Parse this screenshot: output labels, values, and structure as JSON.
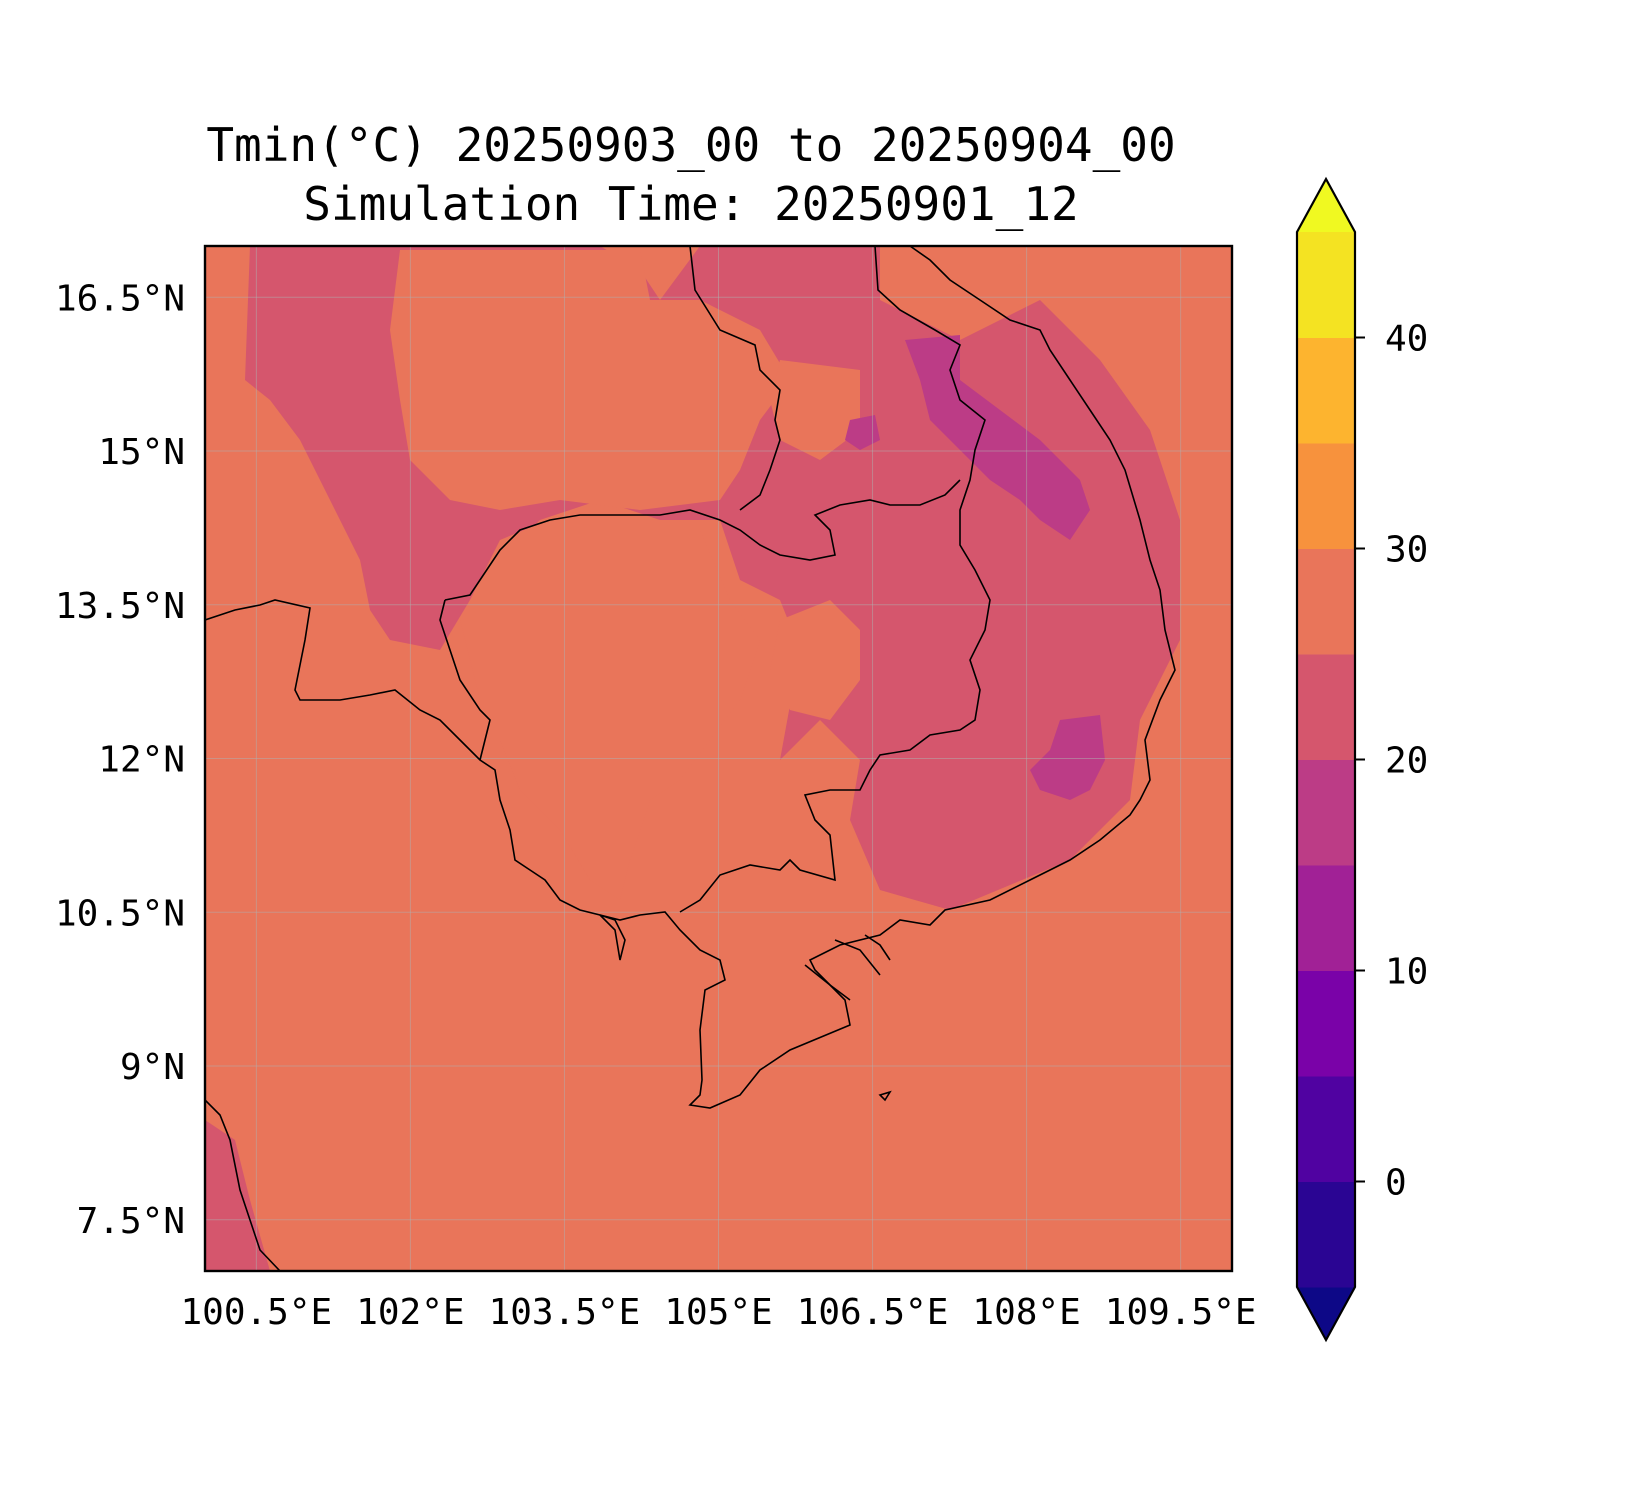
{
  "title": {
    "line1": "Tmin(°C) 20250903_00 to 20250904_00",
    "line2": "Simulation Time: 20250901_12"
  },
  "map": {
    "lon_range": [
      100.0,
      110.0
    ],
    "lat_range": [
      7.0,
      17.0
    ],
    "x_ticks": [
      {
        "value": 100.5,
        "label": "100.5°E"
      },
      {
        "value": 102.0,
        "label": "102°E"
      },
      {
        "value": 103.5,
        "label": "103.5°E"
      },
      {
        "value": 105.0,
        "label": "105°E"
      },
      {
        "value": 106.5,
        "label": "106.5°E"
      },
      {
        "value": 108.0,
        "label": "108°E"
      },
      {
        "value": 109.5,
        "label": "109.5°E"
      }
    ],
    "y_ticks": [
      {
        "value": 16.5,
        "label": "16.5°N"
      },
      {
        "value": 15.0,
        "label": "15°N"
      },
      {
        "value": 13.5,
        "label": "13.5°N"
      },
      {
        "value": 12.0,
        "label": "12°N"
      },
      {
        "value": 10.5,
        "label": "10.5°N"
      },
      {
        "value": 9.0,
        "label": "9°N"
      },
      {
        "value": 7.5,
        "label": "7.5°N"
      }
    ],
    "grid": true,
    "field_colors": {
      "25-30": "#e9755a",
      "20-25": "#d5566d",
      "15-20": "#bc3c86",
      "10-15": "#a12196"
    }
  },
  "colorbar": {
    "range": [
      -5,
      45
    ],
    "levels": [
      -5,
      0,
      5,
      10,
      15,
      20,
      25,
      30,
      35,
      40,
      45
    ],
    "colors": [
      "#2a0593",
      "#5002a1",
      "#7a02a8",
      "#a12196",
      "#bc3c86",
      "#d5566d",
      "#e9755a",
      "#f7923d",
      "#fdb42f",
      "#f4e322"
    ],
    "extend_under_color": "#0d0887",
    "extend_over_color": "#f0f921",
    "ticks": [
      {
        "value": 0,
        "label": "0"
      },
      {
        "value": 10,
        "label": "10"
      },
      {
        "value": 20,
        "label": "20"
      },
      {
        "value": 30,
        "label": "30"
      },
      {
        "value": 40,
        "label": "40"
      }
    ]
  }
}
